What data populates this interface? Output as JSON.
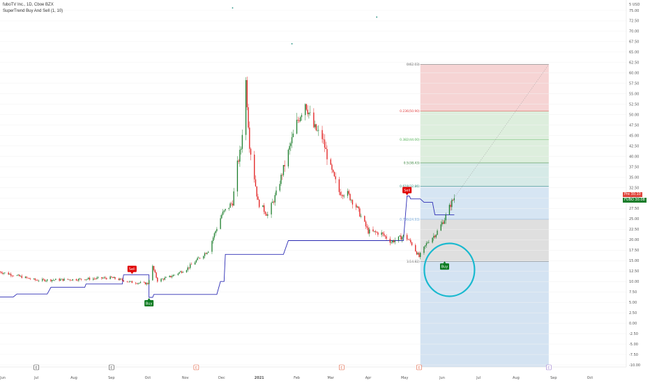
{
  "header": {
    "title": "fuboTV Inc., 1D, Cboe BZX",
    "indicator": "SuperTrend Buy And Sell (1, 10)"
  },
  "price_tags": {
    "pre_label": "Pre",
    "pre_value": "30.10",
    "symbol_label": "FUBO",
    "symbol_value": "30.08"
  },
  "colors": {
    "up": "#1b7d2b",
    "down": "#e11b1b",
    "supertrend": "#2d2db5",
    "circle": "#19b9cf",
    "buy": "#0a7a1f",
    "sell": "#e00000",
    "fib_red": "#f4cccc",
    "fib_green": "#d7ebd7",
    "fib_teal": "#cfe6e3",
    "fib_blue": "#cfe0f1",
    "fib_gray": "#d9d9d9"
  },
  "chart_data": {
    "type": "candlestick",
    "title": "",
    "xlabel": "",
    "ylabel": "",
    "ylim": [
      -10.5,
      77.5
    ],
    "y_ticks": [
      "-10.00",
      "-7.50",
      "-5.00",
      "-2.50",
      "0.00",
      "2.50",
      "5.00",
      "7.50",
      "10.00",
      "12.50",
      "15.00",
      "17.50",
      "20.00",
      "22.50",
      "25.00",
      "27.50",
      "30.00",
      "32.50",
      "35.00",
      "37.50",
      "40.00",
      "42.50",
      "45.00",
      "47.50",
      "50.00",
      "52.50",
      "55.00",
      "57.50",
      "60.00",
      "62.50",
      "65.00",
      "67.50",
      "70.00",
      "72.50",
      "75.00"
    ],
    "top_tick_label": "5 USD",
    "x_ticks": [
      "Jun",
      "Jul",
      "Aug",
      "Sep",
      "Oct",
      "Nov",
      "Dec",
      "2021",
      "Feb",
      "Mar",
      "Apr",
      "May",
      "Jun",
      "Jul",
      "Aug",
      "Sep",
      "Oct"
    ],
    "x_range": [
      "2020-06-01",
      "2021-10-31"
    ],
    "last_bar_date": "2021-06-11",
    "close_anchors": [
      [
        "2020-06-01",
        12.3
      ],
      [
        "2020-07-01",
        10.3
      ],
      [
        "2020-08-03",
        10.5
      ],
      [
        "2020-09-01",
        10.9
      ],
      [
        "2020-09-18",
        9.8
      ],
      [
        "2020-10-01",
        9.5
      ],
      [
        "2020-10-05",
        13.5
      ],
      [
        "2020-10-09",
        10.2
      ],
      [
        "2020-10-20",
        11.2
      ],
      [
        "2020-11-02",
        13.0
      ],
      [
        "2020-11-20",
        17.5
      ],
      [
        "2020-12-01",
        26.0
      ],
      [
        "2020-12-10",
        29.0
      ],
      [
        "2020-12-14",
        38.0
      ],
      [
        "2020-12-17",
        42.0
      ],
      [
        "2020-12-21",
        58.0
      ],
      [
        "2020-12-24",
        43.0
      ],
      [
        "2020-12-31",
        29.0
      ],
      [
        "2021-01-08",
        26.0
      ],
      [
        "2021-01-15",
        31.0
      ],
      [
        "2021-01-22",
        38.0
      ],
      [
        "2021-02-01",
        48.0
      ],
      [
        "2021-02-08",
        53.0
      ],
      [
        "2021-02-15",
        47.0
      ],
      [
        "2021-02-22",
        44.5
      ],
      [
        "2021-03-01",
        37.0
      ],
      [
        "2021-03-08",
        31.5
      ],
      [
        "2021-03-15",
        31.0
      ],
      [
        "2021-03-22",
        28.0
      ],
      [
        "2021-04-01",
        22.0
      ],
      [
        "2021-04-12",
        21.5
      ],
      [
        "2021-04-20",
        19.5
      ],
      [
        "2021-05-01",
        21.0
      ],
      [
        "2021-05-07",
        19.0
      ],
      [
        "2021-05-13",
        15.9
      ],
      [
        "2021-05-20",
        19.5
      ],
      [
        "2021-05-27",
        21.5
      ],
      [
        "2021-06-03",
        25.0
      ],
      [
        "2021-06-08",
        28.5
      ],
      [
        "2021-06-11",
        30.1
      ]
    ],
    "supertrend": [
      [
        "2020-06-01",
        6.3
      ],
      [
        "2020-06-12",
        6.3
      ],
      [
        "2020-06-15",
        7.0
      ],
      [
        "2020-07-10",
        7.0
      ],
      [
        "2020-07-13",
        8.6
      ],
      [
        "2020-08-10",
        8.6
      ],
      [
        "2020-08-11",
        9.4
      ],
      [
        "2020-09-10",
        9.4
      ],
      [
        "2020-09-11",
        11.6
      ],
      [
        "2020-10-02",
        11.6
      ],
      [
        "2020-10-02",
        6.2
      ],
      [
        "2020-10-05",
        6.2
      ],
      [
        "2020-10-06",
        6.9
      ],
      [
        "2020-11-27",
        6.9
      ],
      [
        "2020-11-30",
        10.0
      ],
      [
        "2020-12-03",
        10.0
      ],
      [
        "2020-12-04",
        16.5
      ],
      [
        "2021-01-21",
        16.5
      ],
      [
        "2021-01-25",
        19.8
      ],
      [
        "2021-04-30",
        19.8
      ],
      [
        "2021-05-03",
        30.5
      ],
      [
        "2021-05-05",
        30.5
      ],
      [
        "2021-05-06",
        29.8
      ],
      [
        "2021-05-14",
        29.8
      ],
      [
        "2021-05-17",
        29.0
      ],
      [
        "2021-05-24",
        29.0
      ],
      [
        "2021-05-26",
        26.0
      ],
      [
        "2021-06-11",
        26.0
      ],
      [
        "2021-06-11",
        26.0
      ]
    ],
    "signals": [
      {
        "type": "sell",
        "label": "Sell",
        "date": "2020-09-18",
        "price": 11.6
      },
      {
        "type": "buy",
        "label": "Buy",
        "date": "2020-10-02",
        "price": 6.2
      },
      {
        "type": "sell",
        "label": "Sell",
        "date": "2021-05-03",
        "price": 30.5
      },
      {
        "type": "buy",
        "label": "Buy",
        "date": "2021-06-03",
        "price": 15.0
      }
    ],
    "fib_levels": [
      {
        "label": "0(62.03)",
        "ratio": 0,
        "price": 62.03,
        "color": "#555555"
      },
      {
        "label": "0.236(50.90)",
        "ratio": 0.236,
        "price": 50.9,
        "color": "#e03c3c"
      },
      {
        "label": "0.382(44.00)",
        "ratio": 0.382,
        "price": 44.0,
        "color": "#4caf50"
      },
      {
        "label": "0.5(38.43)",
        "ratio": 0.5,
        "price": 38.43,
        "color": "#2e7d32"
      },
      {
        "label": "0.618(32.86)",
        "ratio": 0.618,
        "price": 32.86,
        "color": "#1a7f6f"
      },
      {
        "label": "0.786(24.93)",
        "ratio": 0.786,
        "price": 24.93,
        "color": "#4a8fd0"
      },
      {
        "label": "1(14.82)",
        "ratio": 1,
        "price": 14.82,
        "color": "#555555"
      }
    ],
    "fib_range": {
      "start": "2021-05-14",
      "end": "2021-08-28",
      "extend_to": -10.5
    },
    "small_dots": [
      {
        "date": "2020-12-10",
        "price": 75.6
      },
      {
        "date": "2021-01-28",
        "price": 67.0
      },
      {
        "date": "2021-04-08",
        "price": 73.4
      }
    ],
    "event_markers": [
      {
        "date": "2020-07-01",
        "label": "E"
      },
      {
        "date": "2020-09-01",
        "label": "E"
      },
      {
        "date": "2020-11-10",
        "label": "E"
      },
      {
        "date": "2021-03-10",
        "label": "E"
      },
      {
        "date": "2021-05-13",
        "label": "E"
      },
      {
        "date": "2021-08-28",
        "label": "E"
      }
    ],
    "highlight_circle": {
      "date": "2021-06-07",
      "price": 12.8
    }
  }
}
